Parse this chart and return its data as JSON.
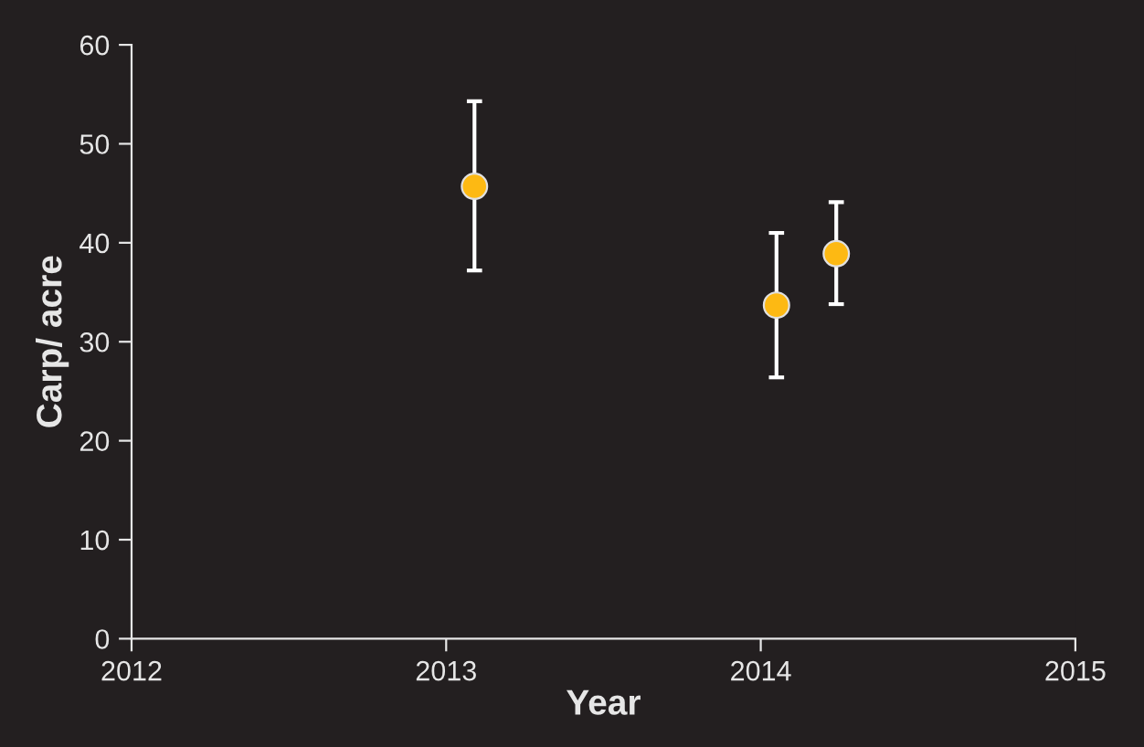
{
  "chart_data": {
    "type": "scatter",
    "xlabel": "Year",
    "ylabel": "Carp/ acre",
    "x": [
      2013.09,
      2014.05,
      2014.24
    ],
    "series": [
      {
        "color": "#fdb913",
        "values": [
          45.7,
          33.7,
          38.9
        ],
        "errors": [
          [
            37.2,
            54.3
          ],
          [
            26.4,
            41.0
          ],
          [
            33.8,
            44.1
          ]
        ]
      }
    ],
    "xlim": [
      2012,
      2015
    ],
    "xticks": [
      2012,
      2013,
      2014,
      2015
    ],
    "ylim": [
      0,
      60
    ],
    "yticks": [
      0,
      10,
      20,
      30,
      40,
      50,
      60
    ],
    "marker": "circle",
    "grid": false,
    "legend": false
  }
}
